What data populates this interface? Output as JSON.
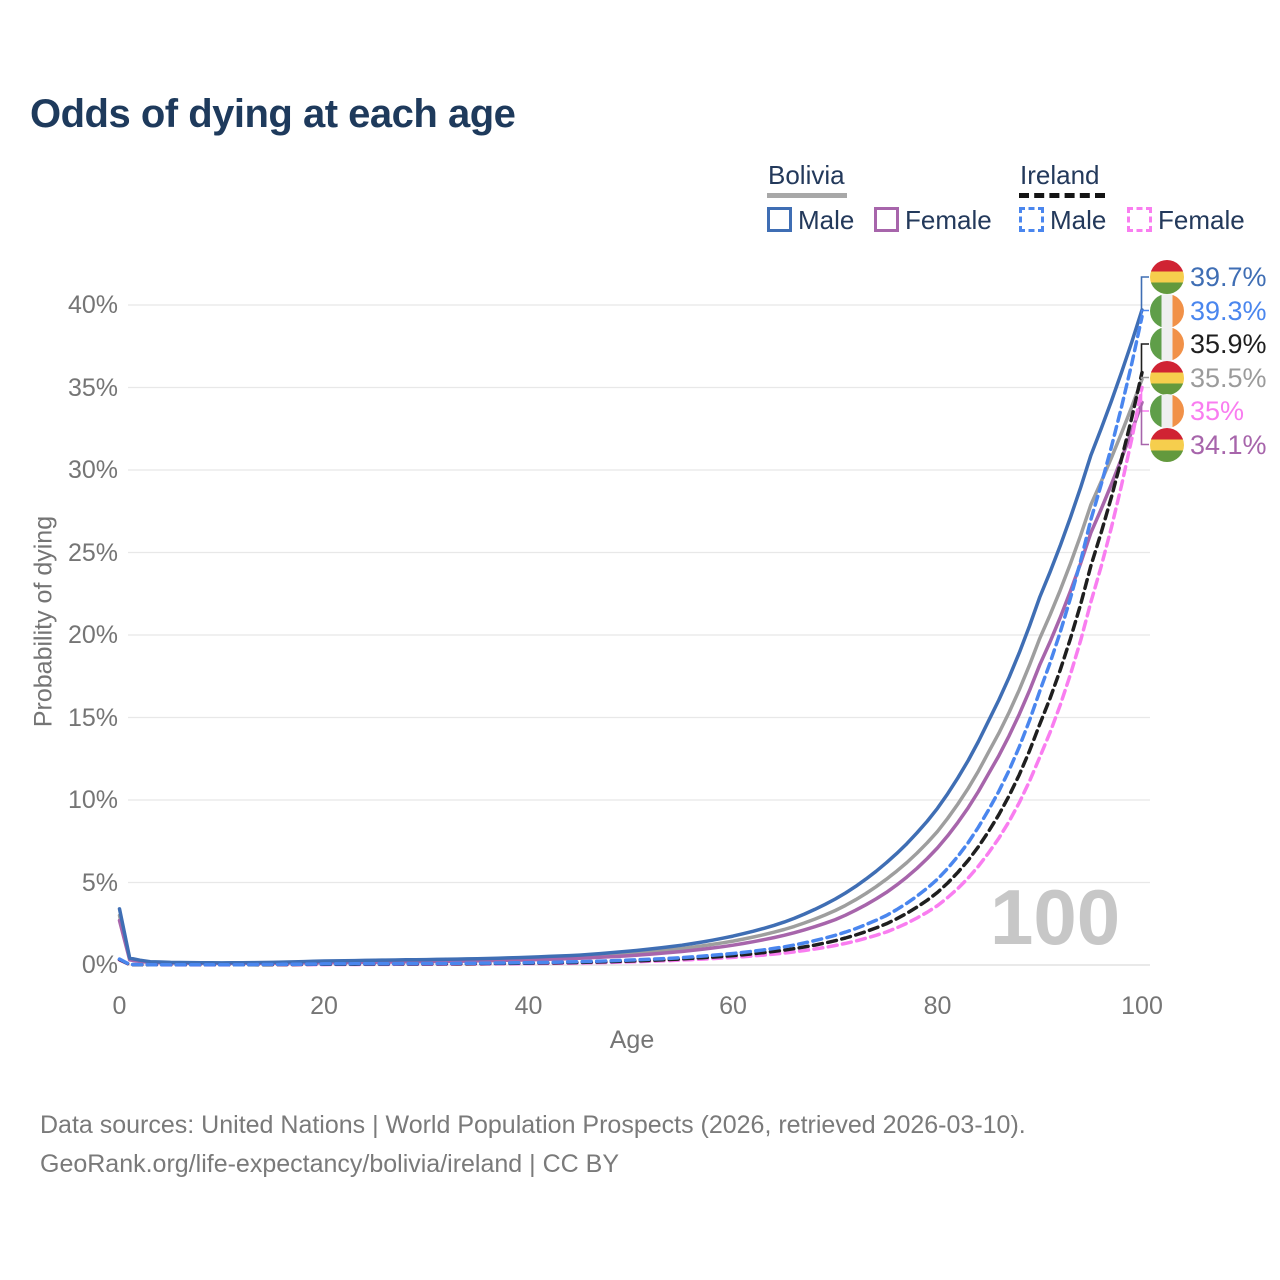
{
  "title": "Odds of dying at each age",
  "legend": {
    "groups": [
      {
        "label": "Bolivia",
        "line_style": "solid",
        "underline_color": "#a8a8a8",
        "items": [
          {
            "label": "Male",
            "color": "#3f6eb4"
          },
          {
            "label": "Female",
            "color": "#a765ab"
          }
        ]
      },
      {
        "label": "Ireland",
        "line_style": "dashed",
        "underline_color": "#141414",
        "items": [
          {
            "label": "Male",
            "color": "#4a86ee"
          },
          {
            "label": "Female",
            "color": "#f97df0"
          }
        ]
      }
    ]
  },
  "chart_data": {
    "type": "line",
    "title": "Odds of dying at each age",
    "xlabel": "Age",
    "ylabel": "Probability of dying",
    "xlim": [
      0,
      100
    ],
    "ylim": [
      0,
      41.5
    ],
    "grid": "horizontal",
    "watermark": "100",
    "xticks": {
      "values": [
        0,
        20,
        40,
        60,
        80,
        100
      ],
      "labels": [
        "0",
        "20",
        "40",
        "60",
        "80",
        "100"
      ]
    },
    "yticks": {
      "values": [
        0,
        5,
        10,
        15,
        20,
        25,
        30,
        35,
        40
      ],
      "labels": [
        "0%",
        "5%",
        "10%",
        "15%",
        "20%",
        "25%",
        "30%",
        "35%",
        "40%"
      ]
    },
    "series": [
      {
        "id": "bolivia-total",
        "name": "Bolivia (both sexes)",
        "country": "Bolivia",
        "color": "#9e9e9e",
        "dashed": false,
        "end_value_pct": 35.5,
        "points": [
          [
            0,
            3.0
          ],
          [
            1,
            0.36
          ],
          [
            3,
            0.17
          ],
          [
            5,
            0.14
          ],
          [
            10,
            0.11
          ],
          [
            15,
            0.13
          ],
          [
            20,
            0.19
          ],
          [
            25,
            0.23
          ],
          [
            30,
            0.26
          ],
          [
            35,
            0.31
          ],
          [
            40,
            0.38
          ],
          [
            45,
            0.5
          ],
          [
            50,
            0.7
          ],
          [
            55,
            1.0
          ],
          [
            60,
            1.45
          ],
          [
            65,
            2.15
          ],
          [
            70,
            3.3
          ],
          [
            75,
            5.2
          ],
          [
            80,
            8.1
          ],
          [
            85,
            12.9
          ],
          [
            90,
            19.8
          ],
          [
            95,
            27.9
          ],
          [
            100,
            35.5
          ]
        ]
      },
      {
        "id": "bolivia-female",
        "name": "Bolivia Female",
        "country": "Bolivia",
        "color": "#a765ab",
        "dashed": false,
        "end_value_pct": 34.1,
        "points": [
          [
            0,
            2.7
          ],
          [
            1,
            0.31
          ],
          [
            3,
            0.15
          ],
          [
            5,
            0.12
          ],
          [
            10,
            0.1
          ],
          [
            15,
            0.11
          ],
          [
            20,
            0.14
          ],
          [
            25,
            0.17
          ],
          [
            30,
            0.2
          ],
          [
            35,
            0.25
          ],
          [
            40,
            0.31
          ],
          [
            45,
            0.41
          ],
          [
            50,
            0.57
          ],
          [
            55,
            0.82
          ],
          [
            60,
            1.2
          ],
          [
            65,
            1.8
          ],
          [
            70,
            2.75
          ],
          [
            75,
            4.4
          ],
          [
            80,
            7.1
          ],
          [
            85,
            11.6
          ],
          [
            90,
            18.2
          ],
          [
            95,
            26.2
          ],
          [
            100,
            34.1
          ]
        ]
      },
      {
        "id": "bolivia-male",
        "name": "Bolivia Male",
        "country": "Bolivia",
        "color": "#3f6eb4",
        "dashed": false,
        "end_value_pct": 39.7,
        "points": [
          [
            0,
            3.4
          ],
          [
            1,
            0.42
          ],
          [
            3,
            0.2
          ],
          [
            5,
            0.16
          ],
          [
            10,
            0.13
          ],
          [
            15,
            0.16
          ],
          [
            20,
            0.24
          ],
          [
            25,
            0.29
          ],
          [
            30,
            0.33
          ],
          [
            35,
            0.38
          ],
          [
            40,
            0.47
          ],
          [
            45,
            0.6
          ],
          [
            50,
            0.85
          ],
          [
            55,
            1.2
          ],
          [
            60,
            1.75
          ],
          [
            65,
            2.6
          ],
          [
            70,
            4.0
          ],
          [
            75,
            6.2
          ],
          [
            80,
            9.5
          ],
          [
            85,
            14.8
          ],
          [
            90,
            22.3
          ],
          [
            95,
            30.9
          ],
          [
            100,
            39.7
          ]
        ]
      },
      {
        "id": "ireland-female",
        "name": "Ireland Female",
        "country": "Ireland",
        "color": "#f97df0",
        "dashed": true,
        "end_value_pct": 35.0,
        "points": [
          [
            0,
            0.3
          ],
          [
            1,
            0.022
          ],
          [
            5,
            0.009
          ],
          [
            10,
            0.009
          ],
          [
            15,
            0.016
          ],
          [
            20,
            0.026
          ],
          [
            25,
            0.036
          ],
          [
            30,
            0.048
          ],
          [
            35,
            0.062
          ],
          [
            40,
            0.085
          ],
          [
            45,
            0.12
          ],
          [
            50,
            0.19
          ],
          [
            55,
            0.3
          ],
          [
            60,
            0.46
          ],
          [
            65,
            0.72
          ],
          [
            70,
            1.18
          ],
          [
            75,
            2.0
          ],
          [
            80,
            3.6
          ],
          [
            85,
            6.8
          ],
          [
            90,
            12.6
          ],
          [
            95,
            22.0
          ],
          [
            100,
            35.0
          ]
        ]
      },
      {
        "id": "ireland-total",
        "name": "Ireland (both sexes)",
        "country": "Ireland",
        "color": "#1f1f1f",
        "dashed": true,
        "end_value_pct": 35.9,
        "points": [
          [
            0,
            0.33
          ],
          [
            1,
            0.026
          ],
          [
            5,
            0.01
          ],
          [
            10,
            0.01
          ],
          [
            15,
            0.025
          ],
          [
            20,
            0.045
          ],
          [
            25,
            0.055
          ],
          [
            30,
            0.065
          ],
          [
            35,
            0.085
          ],
          [
            40,
            0.11
          ],
          [
            45,
            0.16
          ],
          [
            50,
            0.24
          ],
          [
            55,
            0.37
          ],
          [
            60,
            0.57
          ],
          [
            65,
            0.9
          ],
          [
            70,
            1.47
          ],
          [
            75,
            2.5
          ],
          [
            80,
            4.4
          ],
          [
            85,
            8.1
          ],
          [
            90,
            14.6
          ],
          [
            95,
            24.2
          ],
          [
            100,
            35.9
          ]
        ]
      },
      {
        "id": "ireland-male",
        "name": "Ireland Male",
        "country": "Ireland",
        "color": "#4a86ee",
        "dashed": true,
        "end_value_pct": 39.3,
        "points": [
          [
            0,
            0.36
          ],
          [
            1,
            0.03
          ],
          [
            5,
            0.012
          ],
          [
            10,
            0.012
          ],
          [
            15,
            0.035
          ],
          [
            20,
            0.065
          ],
          [
            25,
            0.075
          ],
          [
            30,
            0.09
          ],
          [
            35,
            0.11
          ],
          [
            40,
            0.14
          ],
          [
            45,
            0.2
          ],
          [
            50,
            0.3
          ],
          [
            55,
            0.45
          ],
          [
            60,
            0.7
          ],
          [
            65,
            1.1
          ],
          [
            70,
            1.8
          ],
          [
            75,
            3.0
          ],
          [
            80,
            5.2
          ],
          [
            85,
            9.4
          ],
          [
            90,
            16.6
          ],
          [
            95,
            27.0
          ],
          [
            100,
            39.3
          ]
        ]
      }
    ],
    "annotations": [
      {
        "text": "39.7%",
        "value_pct": 39.7,
        "color": "#3f6eb4",
        "flag": "bolivia",
        "series": "bolivia-male"
      },
      {
        "text": "39.3%",
        "value_pct": 39.3,
        "color": "#4a86ee",
        "flag": "ireland",
        "series": "ireland-male"
      },
      {
        "text": "35.9%",
        "value_pct": 35.9,
        "color": "#1f1f1f",
        "flag": "ireland",
        "series": "ireland-total"
      },
      {
        "text": "35.5%",
        "value_pct": 35.5,
        "color": "#9b9b9b",
        "flag": "bolivia",
        "series": "bolivia-total"
      },
      {
        "text": "35%",
        "value_pct": 35.0,
        "color": "#f97df0",
        "flag": "ireland",
        "series": "ireland-female"
      },
      {
        "text": "34.1%",
        "value_pct": 34.1,
        "color": "#a765ab",
        "flag": "bolivia",
        "series": "bolivia-female"
      }
    ]
  },
  "footer": {
    "line1": "Data sources: United Nations | World Population Prospects (2026, retrieved 2026-03-10).",
    "line2": "GeoRank.org/life-expectancy/bolivia/ireland | CC BY"
  }
}
